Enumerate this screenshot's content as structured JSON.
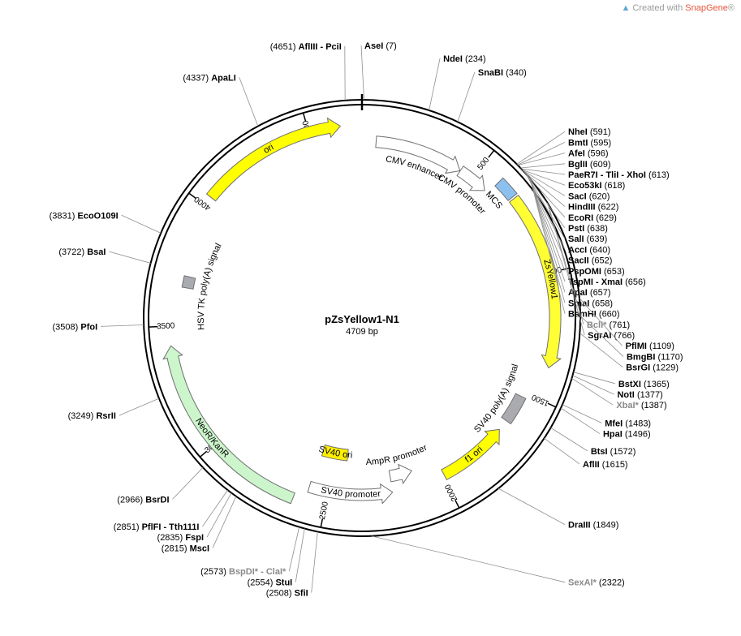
{
  "credit": {
    "prefix": "Created with",
    "brand": "SnapGene",
    "mark": "®"
  },
  "plasmid": {
    "name": "pZsYellow1-N1",
    "size_label": "4709 bp",
    "length": 4709
  },
  "ticks": [
    {
      "pos": 500,
      "label": "500"
    },
    {
      "pos": 1000,
      "label": "1000"
    },
    {
      "pos": 1500,
      "label": "1500"
    },
    {
      "pos": 2000,
      "label": "2000"
    },
    {
      "pos": 2500,
      "label": "2500"
    },
    {
      "pos": 3000,
      "label": "3000"
    },
    {
      "pos": 3500,
      "label": "3500"
    },
    {
      "pos": 4000,
      "label": "4000"
    },
    {
      "pos": 4500,
      "label": "4500"
    }
  ],
  "features": [
    {
      "name": "CMV enhancer",
      "start": 60,
      "end": 440,
      "strand": 1,
      "ring": 1,
      "color": "#ffffff",
      "label_side": "in"
    },
    {
      "name": "CMV promoter",
      "start": 441,
      "end": 574,
      "strand": 1,
      "ring": 1,
      "color": "#ffffff",
      "label_side": "in"
    },
    {
      "name": "MCS",
      "start": 591,
      "end": 670,
      "strand": 0,
      "ring": 0,
      "color": "#8cc0ef",
      "label_side": "in"
    },
    {
      "name": "ZsYellow1",
      "start": 678,
      "end": 1373,
      "strand": 1,
      "ring": 0,
      "color": "#ffff33",
      "label_side": "on"
    },
    {
      "name": "SV40 poly(A) signal",
      "start": 1520,
      "end": 1641,
      "strand": 0,
      "ring": 1,
      "color": "#a9abb1",
      "label_side": "in"
    },
    {
      "name": "f1 ori",
      "start": 1688,
      "end": 1993,
      "strand": -1,
      "ring": 1,
      "color": "#ffff00",
      "label_side": "on"
    },
    {
      "name": "AmpR promoter",
      "start": 2119,
      "end": 2223,
      "strand": -1,
      "ring": 2,
      "color": "#ffffff",
      "label_side": "in"
    },
    {
      "name": "SV40 promoter",
      "start": 2224,
      "end": 2581,
      "strand": -1,
      "ring": 1,
      "color": "#ffffff",
      "label_side": "on"
    },
    {
      "name": "SV40 ori",
      "start": 2432,
      "end": 2567,
      "strand": 0,
      "ring": 3,
      "color": "#ffef00",
      "label_side": "on"
    },
    {
      "name": "NeoR/KanR",
      "start": 2629,
      "end": 3423,
      "strand": 1,
      "ring": 0,
      "color": "#ccf5cc",
      "label_side": "on"
    },
    {
      "name": "HSV TK poly(A) signal",
      "start": 3659,
      "end": 3707,
      "strand": 0,
      "ring": 1,
      "color": "#a9abb1",
      "label_side": "in"
    },
    {
      "name": "ori",
      "start": 4037,
      "end": 4625,
      "strand": 1,
      "ring": 0,
      "color": "#ffff00",
      "label_side": "on"
    }
  ],
  "sites": [
    {
      "name": "AseI",
      "pos": 7,
      "label": "(7)",
      "grey": false
    },
    {
      "name": "NdeI",
      "pos": 234,
      "label": "(234)",
      "grey": false
    },
    {
      "name": "SnaBI",
      "pos": 340,
      "label": "(340)",
      "grey": false
    },
    {
      "name": "NheI",
      "pos": 591,
      "label": "(591)",
      "grey": false
    },
    {
      "name": "BmtI",
      "pos": 595,
      "label": "(595)",
      "grey": false
    },
    {
      "name": "AfeI",
      "pos": 596,
      "label": "(596)",
      "grey": false
    },
    {
      "name": "BglII",
      "pos": 609,
      "label": "(609)",
      "grey": false
    },
    {
      "name": "PaeR7I - TliI - XhoI",
      "pos": 613,
      "label": "(613)",
      "grey": false
    },
    {
      "name": "Eco53kI",
      "pos": 618,
      "label": "(618)",
      "grey": false
    },
    {
      "name": "SacI",
      "pos": 620,
      "label": "(620)",
      "grey": false
    },
    {
      "name": "HindIII",
      "pos": 622,
      "label": "(622)",
      "grey": false
    },
    {
      "name": "EcoRI",
      "pos": 629,
      "label": "(629)",
      "grey": false
    },
    {
      "name": "PstI",
      "pos": 638,
      "label": "(638)",
      "grey": false
    },
    {
      "name": "SalI",
      "pos": 639,
      "label": "(639)",
      "grey": false
    },
    {
      "name": "AccI",
      "pos": 640,
      "label": "(640)",
      "grey": false
    },
    {
      "name": "SacII",
      "pos": 652,
      "label": "(652)",
      "grey": false
    },
    {
      "name": "PspOMI",
      "pos": 653,
      "label": "(653)",
      "grey": false
    },
    {
      "name": "TspMI - XmaI",
      "pos": 656,
      "label": "(656)",
      "grey": false
    },
    {
      "name": "ApaI",
      "pos": 657,
      "label": "(657)",
      "grey": false
    },
    {
      "name": "SmaI",
      "pos": 658,
      "label": "(658)",
      "grey": false
    },
    {
      "name": "BamHI",
      "pos": 660,
      "label": "(660)",
      "grey": false
    },
    {
      "name": "BclI*",
      "pos": 761,
      "label": "(761)",
      "grey": true
    },
    {
      "name": "SgrAI",
      "pos": 766,
      "label": "(766)",
      "grey": false
    },
    {
      "name": "PflMI",
      "pos": 1109,
      "label": "(1109)",
      "grey": false
    },
    {
      "name": "BmgBI",
      "pos": 1170,
      "label": "(1170)",
      "grey": false
    },
    {
      "name": "BsrGI",
      "pos": 1229,
      "label": "(1229)",
      "grey": false
    },
    {
      "name": "BstXI",
      "pos": 1365,
      "label": "(1365)",
      "grey": false
    },
    {
      "name": "NotI",
      "pos": 1377,
      "label": "(1377)",
      "grey": false
    },
    {
      "name": "XbaI*",
      "pos": 1387,
      "label": "(1387)",
      "grey": true
    },
    {
      "name": "MfeI",
      "pos": 1483,
      "label": "(1483)",
      "grey": false
    },
    {
      "name": "HpaI",
      "pos": 1496,
      "label": "(1496)",
      "grey": false
    },
    {
      "name": "BtsI",
      "pos": 1572,
      "label": "(1572)",
      "grey": false
    },
    {
      "name": "AflII",
      "pos": 1615,
      "label": "(1615)",
      "grey": false
    },
    {
      "name": "DraIII",
      "pos": 1849,
      "label": "(1849)",
      "grey": false
    },
    {
      "name": "SexAI*",
      "pos": 2322,
      "label": "(2322)",
      "grey": true
    },
    {
      "name": "SfiI",
      "pos": 2508,
      "label": "(2508)",
      "grey": false
    },
    {
      "name": "StuI",
      "pos": 2554,
      "label": "(2554)",
      "grey": false
    },
    {
      "name": "BspDI* - ClaI*",
      "pos": 2573,
      "label": "(2573)",
      "grey": true
    },
    {
      "name": "MscI",
      "pos": 2815,
      "label": "(2815)",
      "grey": false
    },
    {
      "name": "FspI",
      "pos": 2835,
      "label": "(2835)",
      "grey": false
    },
    {
      "name": "PflFI - Tth111I",
      "pos": 2851,
      "label": "(2851)",
      "grey": false
    },
    {
      "name": "BsrDI",
      "pos": 2966,
      "label": "(2966)",
      "grey": false
    },
    {
      "name": "RsrII",
      "pos": 3249,
      "label": "(3249)",
      "grey": false
    },
    {
      "name": "PfoI",
      "pos": 3508,
      "label": "(3508)",
      "grey": false
    },
    {
      "name": "BsaI",
      "pos": 3722,
      "label": "(3722)",
      "grey": false
    },
    {
      "name": "EcoO109I",
      "pos": 3831,
      "label": "(3831)",
      "grey": false
    },
    {
      "name": "ApaLI",
      "pos": 4337,
      "label": "(4337)",
      "grey": false
    },
    {
      "name": "AflIII - PciI",
      "pos": 4651,
      "label": "(4651)",
      "grey": false
    }
  ]
}
